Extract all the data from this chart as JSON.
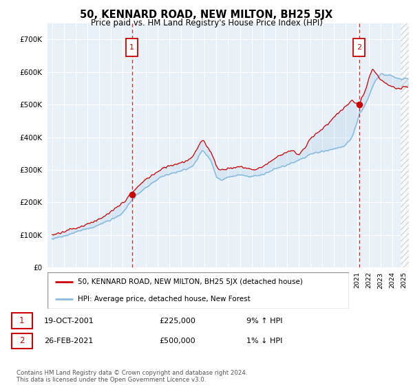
{
  "title": "50, KENNARD ROAD, NEW MILTON, BH25 5JX",
  "subtitle": "Price paid vs. HM Land Registry's House Price Index (HPI)",
  "ylim": [
    0,
    750000
  ],
  "sale1_x": 2001.8,
  "sale1_y": 225000,
  "sale2_x": 2021.15,
  "sale2_y": 500000,
  "legend_line1": "50, KENNARD ROAD, NEW MILTON, BH25 5JX (detached house)",
  "legend_line2": "HPI: Average price, detached house, New Forest",
  "row1_date": "19-OCT-2001",
  "row1_price": "£225,000",
  "row1_hpi": "9% ↑ HPI",
  "row2_date": "26-FEB-2021",
  "row2_price": "£500,000",
  "row2_hpi": "1% ↓ HPI",
  "footnote": "Contains HM Land Registry data © Crown copyright and database right 2024.\nThis data is licensed under the Open Government Licence v3.0.",
  "line_color_red": "#cc0000",
  "line_color_blue": "#88bbdd",
  "plot_bg": "#e8f0f8",
  "grid_color": "#ffffff",
  "box_color": "#cc0000",
  "xlim_start": 1994.6,
  "xlim_end": 2025.4
}
